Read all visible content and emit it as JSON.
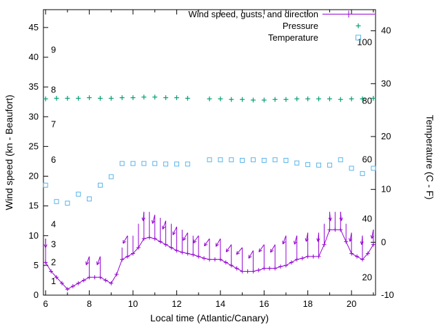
{
  "chart_data": {
    "type": "line",
    "title": "",
    "xlabel": "Local time (Atlantic/Canary)",
    "ylabel_left": "Wind speed (kn - Beaufort)",
    "ylabel_right": "Temperature (C - F)",
    "x_range": [
      5.9,
      21.1
    ],
    "x_major_ticks": [
      6,
      8,
      10,
      12,
      14,
      16,
      18,
      20
    ],
    "x_minor_ticks": [
      7,
      9,
      11,
      13,
      15,
      17,
      19,
      21
    ],
    "y_left_range": [
      0,
      48
    ],
    "y_left_ticks": [
      0,
      5,
      10,
      15,
      20,
      25,
      30,
      35,
      40,
      45
    ],
    "y_right_range_c": [
      -10,
      44
    ],
    "y_right_ticks_c": [
      -10,
      0,
      10,
      20,
      30,
      40
    ],
    "beaufort_labels": [
      {
        "label": "1",
        "kn": 2.3
      },
      {
        "label": "2",
        "kn": 5.5
      },
      {
        "label": "3",
        "kn": 8.5
      },
      {
        "label": "4",
        "kn": 11.9
      },
      {
        "label": "6",
        "kn": 22.7
      },
      {
        "label": "7",
        "kn": 28.7
      },
      {
        "label": "8",
        "kn": 34.5
      },
      {
        "label": "9",
        "kn": 41.2
      }
    ],
    "fahrenheit_labels": [
      {
        "label": "20",
        "c": -6.7
      },
      {
        "label": "40",
        "c": 4.4
      },
      {
        "label": "60",
        "c": 15.6
      },
      {
        "label": "80",
        "c": 26.7
      },
      {
        "label": "100",
        "c": 37.8
      }
    ],
    "colors": {
      "wind": "#9400d3",
      "pressure": "#009e73",
      "temperature": "#56b4e9",
      "axis": "#000000"
    },
    "legend": [
      {
        "label": "Wind speed, gusts, and direction",
        "series": "wind"
      },
      {
        "label": "Pressure",
        "series": "pressure"
      },
      {
        "label": "Temperature",
        "series": "temperature"
      }
    ],
    "series": {
      "wind": {
        "x": [
          6,
          6.25,
          6.5,
          6.75,
          7,
          7.25,
          7.5,
          7.75,
          8,
          8.25,
          8.5,
          8.75,
          9,
          9.25,
          9.5,
          9.75,
          10,
          10.25,
          10.5,
          10.75,
          11,
          11.25,
          11.5,
          11.75,
          12,
          12.25,
          12.5,
          12.75,
          13,
          13.25,
          13.5,
          13.75,
          14,
          14.25,
          14.5,
          14.75,
          15,
          15.25,
          15.5,
          15.75,
          16,
          16.25,
          16.5,
          16.75,
          17,
          17.25,
          17.5,
          17.75,
          18,
          18.25,
          18.5,
          18.75,
          19,
          19.25,
          19.5,
          19.75,
          20,
          20.25,
          20.5,
          20.75,
          21
        ],
        "speed_kn": [
          5.5,
          4,
          3,
          2,
          1,
          1.5,
          2,
          2.5,
          3,
          3,
          3,
          2.5,
          2,
          3.5,
          6,
          6.5,
          7,
          8,
          9.5,
          9.7,
          9.5,
          9,
          8.5,
          8,
          7.5,
          7.2,
          7,
          6.8,
          6.5,
          6.2,
          6,
          6,
          6,
          5.5,
          5,
          4.5,
          4,
          4,
          4,
          4.2,
          4.5,
          4.5,
          4.5,
          4.8,
          5,
          5.5,
          6,
          6.2,
          6.5,
          6.5,
          6.5,
          8.5,
          11,
          11,
          11,
          9,
          7,
          6.5,
          6,
          7,
          8.5
        ],
        "gust_kn": [
          9.5,
          4,
          3,
          2,
          1,
          1.5,
          2,
          2.5,
          6.5,
          3,
          6.5,
          2.5,
          2,
          3.5,
          8,
          10,
          10,
          12,
          14,
          14,
          13.5,
          13,
          12.5,
          12,
          11.5,
          11,
          10.5,
          10,
          10,
          6.2,
          9.5,
          6,
          9.5,
          5.5,
          8.5,
          4.5,
          8,
          4,
          7.5,
          4.2,
          8.5,
          4.5,
          8.5,
          4.8,
          10,
          5.5,
          10,
          6.2,
          10.5,
          6.5,
          10.5,
          12,
          14,
          14,
          14,
          12,
          10.5,
          6.5,
          10,
          7,
          11
        ]
      },
      "pressure": {
        "x": [
          6,
          6.5,
          7,
          7.5,
          8,
          8.5,
          9,
          9.5,
          10,
          10.5,
          11,
          11.5,
          12,
          12.5,
          13.5,
          14,
          14.5,
          15,
          15.5,
          16,
          16.5,
          17,
          17.5,
          18,
          18.5,
          19,
          19.5,
          20,
          20.5,
          21
        ],
        "y_left_axis": [
          33.0,
          33.1,
          33.1,
          33.1,
          33.2,
          33.1,
          33.1,
          33.2,
          33.2,
          33.3,
          33.3,
          33.2,
          33.2,
          33.1,
          33.0,
          33.0,
          32.9,
          32.9,
          32.8,
          32.8,
          32.9,
          32.9,
          33.0,
          33.0,
          33.0,
          33.0,
          32.9,
          33.0,
          33.0,
          33.1
        ]
      },
      "temperature": {
        "x": [
          6,
          6.5,
          7,
          7.5,
          8,
          8.5,
          9,
          9.5,
          10,
          10.5,
          11,
          11.5,
          12,
          12.5,
          13.5,
          14,
          14.5,
          15,
          15.5,
          16,
          16.5,
          17,
          17.5,
          18,
          18.5,
          19,
          19.5,
          20,
          20.5,
          21
        ],
        "c": [
          10.8,
          7.7,
          7.4,
          9.1,
          8.2,
          10.8,
          12.4,
          14.9,
          14.9,
          14.9,
          14.9,
          14.8,
          14.8,
          14.8,
          15.6,
          15.6,
          15.6,
          15.5,
          15.6,
          15.5,
          15.6,
          15.5,
          15.0,
          14.7,
          14.6,
          14.6,
          15.6,
          14.0,
          13.0,
          14.0
        ]
      }
    },
    "direction_arrows": [
      {
        "x": 6.0,
        "y": 9.5,
        "a": 270
      },
      {
        "x": 8.0,
        "y": 6.5,
        "a": 250
      },
      {
        "x": 8.5,
        "y": 6.5,
        "a": 250
      },
      {
        "x": 9.75,
        "y": 10.0,
        "a": 240
      },
      {
        "x": 10.5,
        "y": 14.0,
        "a": 265
      },
      {
        "x": 11.0,
        "y": 13.5,
        "a": 255
      },
      {
        "x": 11.5,
        "y": 12.5,
        "a": 250
      },
      {
        "x": 12.0,
        "y": 11.5,
        "a": 245
      },
      {
        "x": 12.5,
        "y": 10.5,
        "a": 240
      },
      {
        "x": 13.0,
        "y": 10.0,
        "a": 235
      },
      {
        "x": 13.5,
        "y": 9.5,
        "a": 235
      },
      {
        "x": 14.0,
        "y": 9.5,
        "a": 240
      },
      {
        "x": 14.5,
        "y": 8.5,
        "a": 235
      },
      {
        "x": 15.0,
        "y": 8.0,
        "a": 230
      },
      {
        "x": 15.5,
        "y": 7.5,
        "a": 240
      },
      {
        "x": 16.0,
        "y": 8.5,
        "a": 235
      },
      {
        "x": 16.5,
        "y": 8.5,
        "a": 240
      },
      {
        "x": 17.0,
        "y": 10.0,
        "a": 250
      },
      {
        "x": 17.5,
        "y": 10.0,
        "a": 255
      },
      {
        "x": 18.0,
        "y": 10.5,
        "a": 260
      },
      {
        "x": 18.5,
        "y": 10.5,
        "a": 265
      },
      {
        "x": 19.0,
        "y": 14.0,
        "a": 275
      },
      {
        "x": 19.5,
        "y": 14.0,
        "a": 275
      },
      {
        "x": 20.0,
        "y": 10.5,
        "a": 260
      },
      {
        "x": 20.5,
        "y": 10.0,
        "a": 265
      },
      {
        "x": 21.0,
        "y": 11.0,
        "a": 260
      }
    ]
  }
}
